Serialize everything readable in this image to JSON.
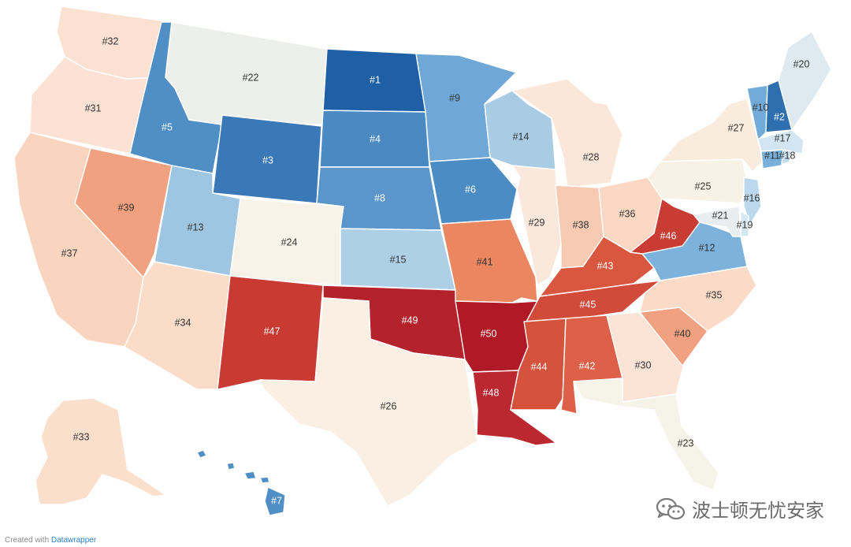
{
  "map": {
    "type": "choropleth",
    "region": "United States",
    "legend": "none",
    "color_scale": {
      "best": "#1f5fa6",
      "middle": "#f6f2ea",
      "worst": "#b01a26"
    },
    "states": [
      {
        "id": "WA",
        "label": "#32",
        "rank": 32,
        "color": "#fbe1d2"
      },
      {
        "id": "OR",
        "label": "#31",
        "rank": 31,
        "color": "#fbe2d4"
      },
      {
        "id": "CA",
        "label": "#37",
        "rank": 37,
        "color": "#f9d4bf"
      },
      {
        "id": "NV",
        "label": "#39",
        "rank": 39,
        "color": "#f1a17f"
      },
      {
        "id": "ID",
        "label": "#5",
        "rank": 5,
        "color": "#4f8fc6"
      },
      {
        "id": "MT",
        "label": "#22",
        "rank": 22,
        "color": "#edf0ea"
      },
      {
        "id": "WY",
        "label": "#3",
        "rank": 3,
        "color": "#3b78b8"
      },
      {
        "id": "UT",
        "label": "#13",
        "rank": 13,
        "color": "#9ec6e2"
      },
      {
        "id": "AZ",
        "label": "#34",
        "rank": 34,
        "color": "#fbdcc9"
      },
      {
        "id": "CO",
        "label": "#24",
        "rank": 24,
        "color": "#f8f3e8"
      },
      {
        "id": "NM",
        "label": "#47",
        "rank": 47,
        "color": "#c93a33"
      },
      {
        "id": "ND",
        "label": "#1",
        "rank": 1,
        "color": "#1f5fa6"
      },
      {
        "id": "SD",
        "label": "#4",
        "rank": 4,
        "color": "#4b89c2"
      },
      {
        "id": "NE",
        "label": "#8",
        "rank": 8,
        "color": "#5a96cb"
      },
      {
        "id": "KS",
        "label": "#15",
        "rank": 15,
        "color": "#add0e6"
      },
      {
        "id": "OK",
        "label": "#49",
        "rank": 49,
        "color": "#b4222b"
      },
      {
        "id": "TX",
        "label": "#26",
        "rank": 26,
        "color": "#f9efe3"
      },
      {
        "id": "MN",
        "label": "#9",
        "rank": 9,
        "color": "#6fa8d6"
      },
      {
        "id": "IA",
        "label": "#6",
        "rank": 6,
        "color": "#4b8cc4"
      },
      {
        "id": "MO",
        "label": "#41",
        "rank": 41,
        "color": "#eb8760"
      },
      {
        "id": "AR",
        "label": "#50",
        "rank": 50,
        "color": "#b01a26"
      },
      {
        "id": "LA",
        "label": "#48",
        "rank": 48,
        "color": "#bc2830"
      },
      {
        "id": "WI",
        "label": "#14",
        "rank": 14,
        "color": "#a8cce4"
      },
      {
        "id": "IL",
        "label": "#29",
        "rank": 29,
        "color": "#fbe8dc"
      },
      {
        "id": "MI",
        "label": "#28",
        "rank": 28,
        "color": "#fbe7da"
      },
      {
        "id": "IN",
        "label": "#38",
        "rank": 38,
        "color": "#f8cab2"
      },
      {
        "id": "OH",
        "label": "#36",
        "rank": 36,
        "color": "#fad8c4"
      },
      {
        "id": "KY",
        "label": "#43",
        "rank": 43,
        "color": "#d9573f"
      },
      {
        "id": "TN",
        "label": "#45",
        "rank": 45,
        "color": "#d24a3a"
      },
      {
        "id": "MS",
        "label": "#44",
        "rank": 44,
        "color": "#d5523d"
      },
      {
        "id": "AL",
        "label": "#42",
        "rank": 42,
        "color": "#de6048"
      },
      {
        "id": "GA",
        "label": "#30",
        "rank": 30,
        "color": "#fbe3d5"
      },
      {
        "id": "FL",
        "label": "#23",
        "rank": 23,
        "color": "#f6f4e8"
      },
      {
        "id": "SC",
        "label": "#40",
        "rank": 40,
        "color": "#f1a080"
      },
      {
        "id": "NC",
        "label": "#35",
        "rank": 35,
        "color": "#fbdbc8"
      },
      {
        "id": "VA",
        "label": "#12",
        "rank": 12,
        "color": "#7cb2dc"
      },
      {
        "id": "WV",
        "label": "#46",
        "rank": 46,
        "color": "#c83c33"
      },
      {
        "id": "PA",
        "label": "#25",
        "rank": 25,
        "color": "#f8f1e6"
      },
      {
        "id": "NY",
        "label": "#27",
        "rank": 27,
        "color": "#f9ecdf"
      },
      {
        "id": "VT",
        "label": "#10",
        "rank": 10,
        "color": "#72abd7"
      },
      {
        "id": "NH",
        "label": "#2",
        "rank": 2,
        "color": "#2e6fb0"
      },
      {
        "id": "ME",
        "label": "#20",
        "rank": 20,
        "color": "#dfeaf0"
      },
      {
        "id": "MA",
        "label": "#17",
        "rank": 17,
        "color": "#d3e5f1"
      },
      {
        "id": "CT",
        "label": "#11",
        "rank": 11,
        "color": "#79b0da"
      },
      {
        "id": "RI",
        "label": "#18",
        "rank": 18,
        "color": "#c5ddee"
      },
      {
        "id": "NJ",
        "label": "#16",
        "rank": 16,
        "color": "#bcd8ec"
      },
      {
        "id": "DE",
        "label": "#19",
        "rank": 19,
        "color": "#d6e8f2"
      },
      {
        "id": "MD",
        "label": "#21",
        "rank": 21,
        "color": "#e8eef0"
      },
      {
        "id": "AK",
        "label": "#33",
        "rank": 33,
        "color": "#fbdfcd"
      },
      {
        "id": "HI",
        "label": "#7",
        "rank": 7,
        "color": "#4f8fc6"
      }
    ]
  },
  "footer": {
    "prefix": "Created with",
    "link": "Datawrapper"
  },
  "watermark": {
    "text": "波士顿无忧安家",
    "icon": "wechat-icon"
  }
}
